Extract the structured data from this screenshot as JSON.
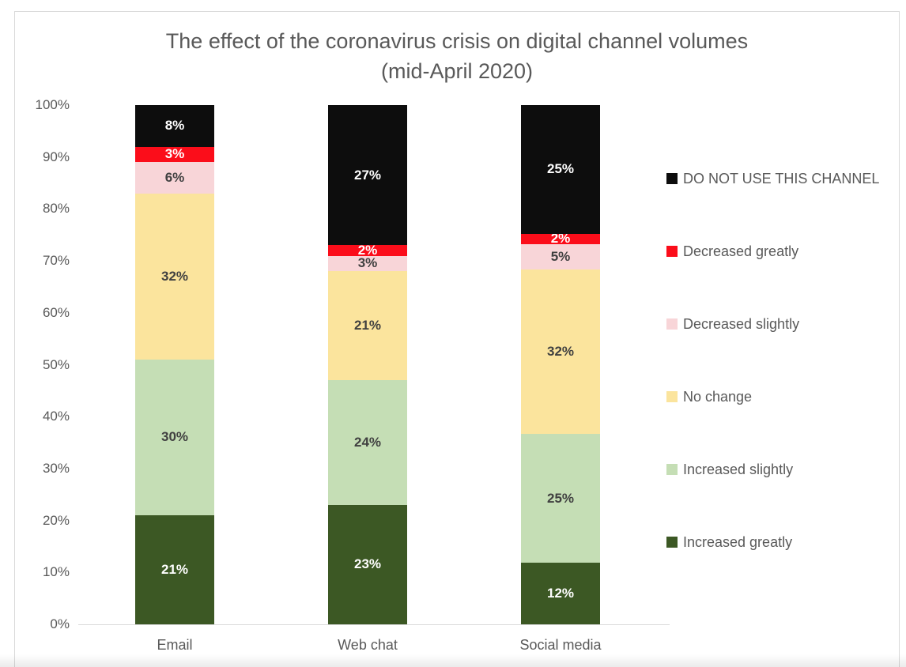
{
  "chart_data": {
    "type": "bar",
    "variant": "stacked-percentage",
    "title": "The effect of the coronavirus crisis on digital channel volumes",
    "subtitle": "(mid-April 2020)",
    "categories": [
      "Email",
      "Web chat",
      "Social media"
    ],
    "series": [
      {
        "name": "Increased greatly",
        "color": "#3c5824",
        "label_color": "#ffffff",
        "values": [
          21,
          23,
          12
        ]
      },
      {
        "name": "Increased slightly",
        "color": "#c5deb5",
        "label_color": "#404040",
        "values": [
          30,
          24,
          25
        ]
      },
      {
        "name": "No change",
        "color": "#fbe49d",
        "label_color": "#404040",
        "values": [
          32,
          21,
          32
        ]
      },
      {
        "name": "Decreased slightly",
        "color": "#f8d5d8",
        "label_color": "#404040",
        "values": [
          6,
          3,
          5
        ]
      },
      {
        "name": "Decreased greatly",
        "color": "#fb0d1a",
        "label_color": "#ffffff",
        "values": [
          3,
          2,
          2
        ]
      },
      {
        "name": "DO NOT USE THIS CHANNEL",
        "color": "#0d0d0d",
        "label_color": "#ffffff",
        "values": [
          8,
          27,
          25
        ]
      }
    ],
    "value_suffix": "%",
    "y_ticks": [
      "0%",
      "10%",
      "20%",
      "30%",
      "40%",
      "50%",
      "60%",
      "70%",
      "80%",
      "90%",
      "100%"
    ],
    "ylim": [
      0,
      100
    ],
    "grid": false,
    "legend_position": "right",
    "legend_order": "top-is-last-series",
    "axis_color": "#d9d9d9",
    "text_color": "#595959"
  }
}
